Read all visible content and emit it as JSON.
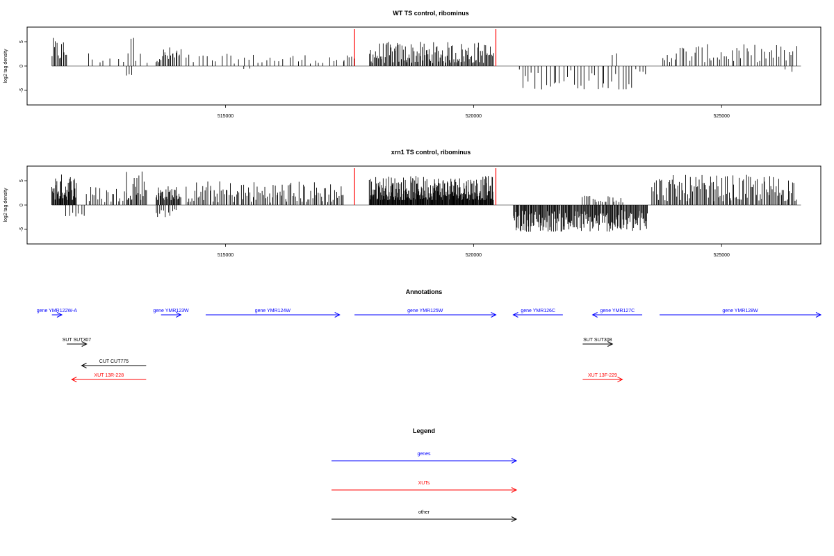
{
  "chart_data": [
    {
      "type": "bar",
      "title": "WT TS control, ribominus",
      "xlabel": "",
      "ylabel": "log2 tag density",
      "xlim": [
        511000,
        527000
      ],
      "ylim": [
        -8,
        8
      ],
      "x_ticks": [
        "515000",
        "520000",
        "525000"
      ],
      "x_tick_values": [
        515000,
        520000,
        525000
      ],
      "y_ticks": [
        "-5",
        "0",
        "5"
      ],
      "y_tick_values": [
        -5,
        0,
        5
      ],
      "marker_lines": [
        517600,
        520450
      ],
      "marker_color": "#ff0000",
      "segments": [
        {
          "start": 511500,
          "end": 511800,
          "step": 25,
          "min": 1.0,
          "max": 5.8
        },
        {
          "start": 512200,
          "end": 513400,
          "step": 120,
          "min": 0.5,
          "max": 3.0
        },
        {
          "start": 513000,
          "end": 513100,
          "step": 50,
          "min": -2.0,
          "max": -1.0
        },
        {
          "start": 513100,
          "end": 513150,
          "step": 50,
          "min": 5.5,
          "max": 5.8
        },
        {
          "start": 513600,
          "end": 514100,
          "step": 25,
          "min": 0.8,
          "max": 4.0
        },
        {
          "start": 514200,
          "end": 517400,
          "step": 90,
          "min": 0.5,
          "max": 2.5
        },
        {
          "start": 515400,
          "end": 515500,
          "step": 100,
          "min": -1.0,
          "max": -0.5
        },
        {
          "start": 517400,
          "end": 517600,
          "step": 50,
          "min": 1.0,
          "max": 2.2
        },
        {
          "start": 517900,
          "end": 520400,
          "step": 20,
          "min": 0.6,
          "max": 5.0
        },
        {
          "start": 520900,
          "end": 523500,
          "step": 70,
          "min": -4.8,
          "max": -0.5
        },
        {
          "start": 522800,
          "end": 522900,
          "step": 100,
          "min": 2.0,
          "max": 2.8
        },
        {
          "start": 523800,
          "end": 526500,
          "step": 50,
          "min": 0.8,
          "max": 4.5
        },
        {
          "start": 526300,
          "end": 526400,
          "step": 100,
          "min": -1.2,
          "max": -0.5
        }
      ]
    },
    {
      "type": "bar",
      "title": "xrn1 TS control, ribominus",
      "xlabel": "",
      "ylabel": "log2 tag density",
      "xlim": [
        511000,
        527000
      ],
      "ylim": [
        -8,
        8
      ],
      "x_ticks": [
        "515000",
        "520000",
        "525000"
      ],
      "x_tick_values": [
        515000,
        520000,
        525000
      ],
      "y_ticks": [
        "-5",
        "0",
        "5"
      ],
      "y_tick_values": [
        -5,
        0,
        5
      ],
      "marker_lines": [
        517600,
        520450
      ],
      "marker_color": "#ff0000",
      "segments": [
        {
          "start": 511500,
          "end": 512000,
          "step": 12,
          "min": 1.0,
          "max": 6.5
        },
        {
          "start": 511800,
          "end": 512200,
          "step": 60,
          "min": -2.5,
          "max": -1.0
        },
        {
          "start": 512200,
          "end": 513000,
          "step": 40,
          "min": 0.5,
          "max": 4.0
        },
        {
          "start": 513000,
          "end": 513400,
          "step": 20,
          "min": 1.0,
          "max": 7.8
        },
        {
          "start": 513600,
          "end": 514100,
          "step": 15,
          "min": 1.0,
          "max": 4.0
        },
        {
          "start": 513600,
          "end": 514000,
          "step": 40,
          "min": -2.5,
          "max": -0.8
        },
        {
          "start": 514200,
          "end": 517400,
          "step": 30,
          "min": 0.5,
          "max": 5.0
        },
        {
          "start": 517900,
          "end": 520400,
          "step": 10,
          "min": 1.0,
          "max": 6.0
        },
        {
          "start": 520800,
          "end": 523500,
          "step": 15,
          "min": -5.5,
          "max": -1.0
        },
        {
          "start": 522200,
          "end": 523000,
          "step": 40,
          "min": 0.5,
          "max": 3.0
        },
        {
          "start": 523600,
          "end": 526500,
          "step": 25,
          "min": 0.8,
          "max": 6.2
        }
      ]
    }
  ],
  "annotations": {
    "title": "Annotations",
    "features": [
      {
        "label": "gene YMR122W-A",
        "start": 511500,
        "end": 511700,
        "dir": "+",
        "row": 0,
        "color": "#0000ff"
      },
      {
        "label": "gene YMR123W",
        "start": 513700,
        "end": 514100,
        "dir": "+",
        "row": 0,
        "color": "#0000ff"
      },
      {
        "label": "gene YMR124W",
        "start": 514600,
        "end": 517300,
        "dir": "+",
        "row": 0,
        "color": "#0000ff"
      },
      {
        "label": "gene YMR125W",
        "start": 517600,
        "end": 520450,
        "dir": "+",
        "row": 0,
        "color": "#0000ff"
      },
      {
        "label": "gene YMR126C",
        "start": 520800,
        "end": 521800,
        "dir": "-",
        "row": 0,
        "color": "#0000ff"
      },
      {
        "label": "gene YMR127C",
        "start": 522400,
        "end": 523400,
        "dir": "-",
        "row": 0,
        "color": "#0000ff"
      },
      {
        "label": "gene YMR128W",
        "start": 523750,
        "end": 527000,
        "dir": "+",
        "row": 0,
        "color": "#0000ff"
      },
      {
        "label": "SUT SUT307",
        "start": 511800,
        "end": 512200,
        "dir": "+",
        "row": 1,
        "color": "#000000"
      },
      {
        "label": "SUT SUT308",
        "start": 522200,
        "end": 522800,
        "dir": "+",
        "row": 1,
        "color": "#000000"
      },
      {
        "label": "CUT CUT775",
        "start": 512100,
        "end": 513400,
        "dir": "-",
        "row": 2,
        "color": "#000000"
      },
      {
        "label": "XUT 13R-228",
        "start": 511900,
        "end": 513400,
        "dir": "-",
        "row": 3,
        "color": "#ff0000"
      },
      {
        "label": "XUT 13F-229",
        "start": 522200,
        "end": 523000,
        "dir": "+",
        "row": 3,
        "color": "#ff0000"
      }
    ]
  },
  "legend": {
    "title": "Legend",
    "items": [
      {
        "label": "genes",
        "color": "#0000ff"
      },
      {
        "label": "XUTs",
        "color": "#ff0000"
      },
      {
        "label": "other",
        "color": "#000000"
      }
    ]
  }
}
